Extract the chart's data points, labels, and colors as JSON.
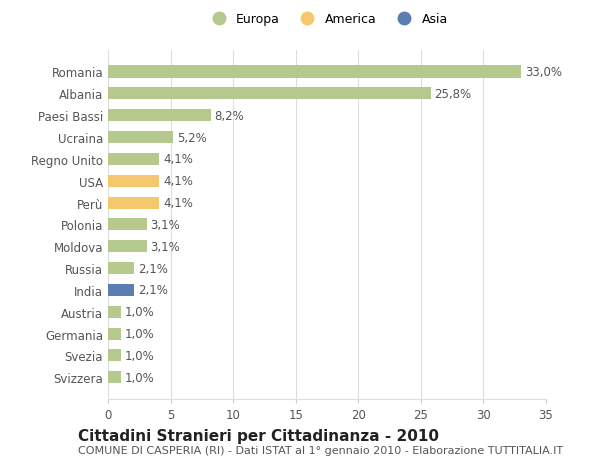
{
  "categories": [
    "Svizzera",
    "Svezia",
    "Germania",
    "Austria",
    "India",
    "Russia",
    "Moldova",
    "Polonia",
    "Perù",
    "USA",
    "Regno Unito",
    "Ucraina",
    "Paesi Bassi",
    "Albania",
    "Romania"
  ],
  "values": [
    1.0,
    1.0,
    1.0,
    1.0,
    2.1,
    2.1,
    3.1,
    3.1,
    4.1,
    4.1,
    4.1,
    5.2,
    8.2,
    25.8,
    33.0
  ],
  "labels": [
    "1,0%",
    "1,0%",
    "1,0%",
    "1,0%",
    "2,1%",
    "2,1%",
    "3,1%",
    "3,1%",
    "4,1%",
    "4,1%",
    "4,1%",
    "5,2%",
    "8,2%",
    "25,8%",
    "33,0%"
  ],
  "colors": [
    "#b5c98e",
    "#b5c98e",
    "#b5c98e",
    "#b5c98e",
    "#5b7db1",
    "#b5c98e",
    "#b5c98e",
    "#b5c98e",
    "#f5c86e",
    "#f5c86e",
    "#b5c98e",
    "#b5c98e",
    "#b5c98e",
    "#b5c98e",
    "#b5c98e"
  ],
  "legend_labels": [
    "Europa",
    "America",
    "Asia"
  ],
  "legend_colors": [
    "#b5c98e",
    "#f5c86e",
    "#5b7db1"
  ],
  "title": "Cittadini Stranieri per Cittadinanza - 2010",
  "subtitle": "COMUNE DI CASPERIA (RI) - Dati ISTAT al 1° gennaio 2010 - Elaborazione TUTTITALIA.IT",
  "xlim": [
    0,
    35
  ],
  "xticks": [
    0,
    5,
    10,
    15,
    20,
    25,
    30,
    35
  ],
  "background_color": "#ffffff",
  "grid_color": "#dddddd",
  "bar_height": 0.55,
  "label_fontsize": 8.5,
  "tick_fontsize": 8.5,
  "title_fontsize": 11,
  "subtitle_fontsize": 8
}
